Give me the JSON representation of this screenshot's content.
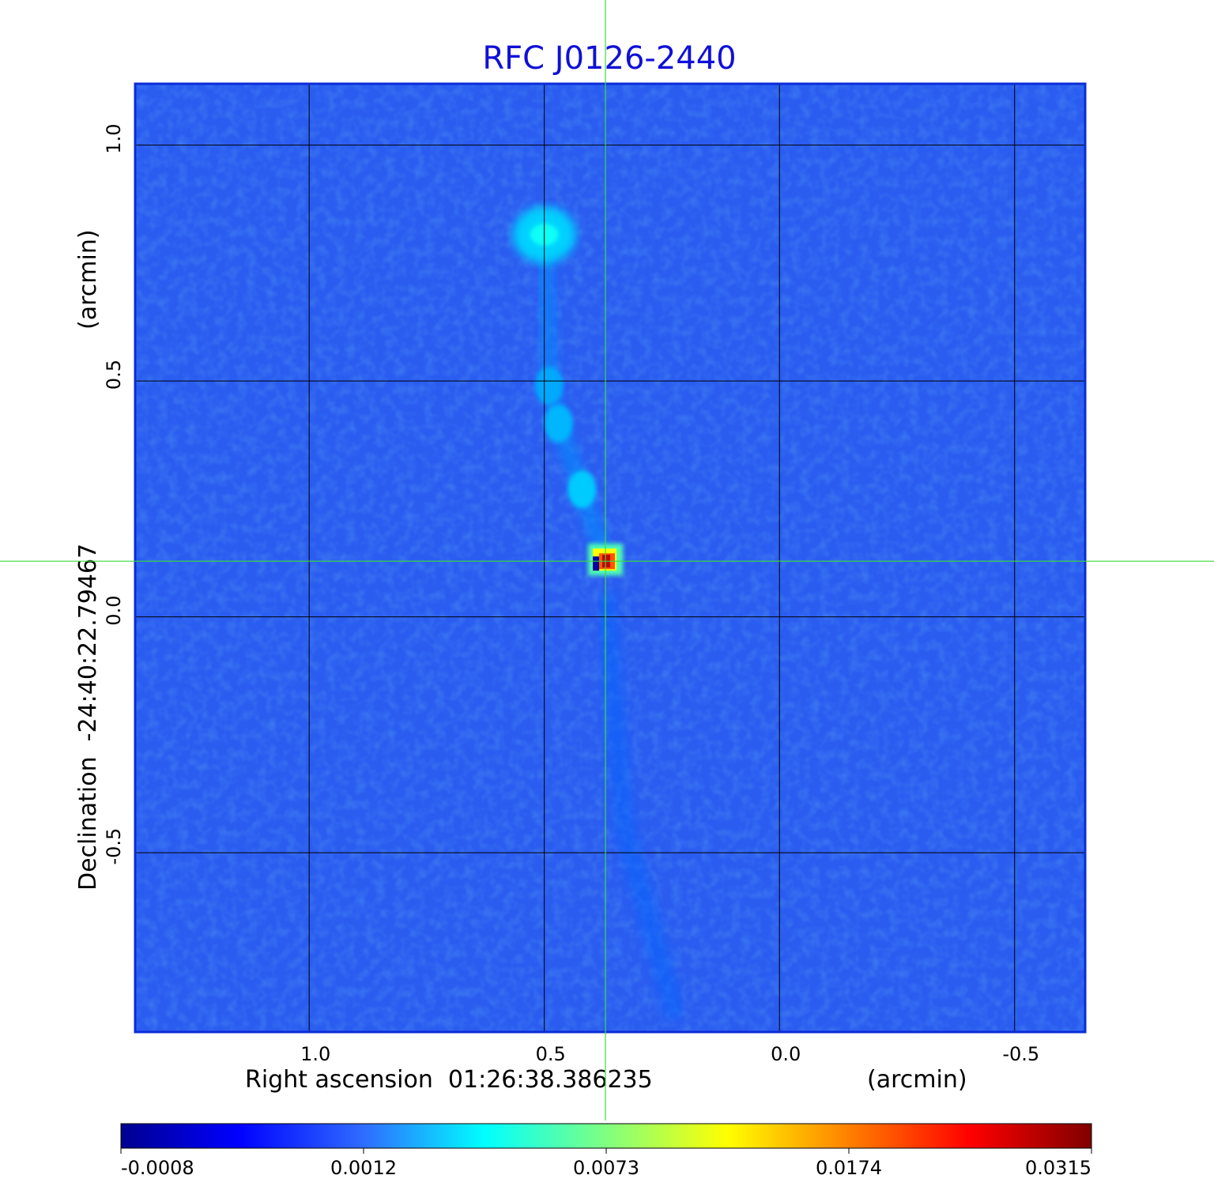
{
  "chart_data": {
    "type": "heatmap",
    "title": "RFC J0126-2440",
    "colormap": "jet",
    "background_color": "#2a5cf0",
    "x_axis": {
      "label_left": "Right ascension  01:26:38.386235",
      "label_right": "(arcmin)",
      "range": [
        1.37,
        -0.65
      ],
      "reversed": true,
      "ticks": [
        1.0,
        0.5,
        0.0,
        -0.5
      ],
      "tick_labels": [
        "1.0",
        "0.5",
        "0.0",
        "-0.5"
      ]
    },
    "y_axis": {
      "label_left": "Declination  -24:40:22.79467",
      "label_right": "(arcmin)",
      "range": [
        -0.88,
        1.13
      ],
      "ticks": [
        1.0,
        0.5,
        0.0,
        -0.5
      ],
      "tick_labels": [
        "1.0",
        "0.5",
        "0.0",
        "-0.5"
      ]
    },
    "grid": true,
    "crosshair": {
      "x": 0.37,
      "y": 0.118,
      "color": "#3ddc3d"
    },
    "colorbar": {
      "orientation": "horizontal",
      "location": "bottom",
      "tick_labels": [
        "-0.0008",
        "0.0012",
        "0.0073",
        "0.0174",
        "0.0315"
      ]
    },
    "features": [
      {
        "name": "core",
        "x": 0.37,
        "y": 0.118,
        "peak": 0.0315
      },
      {
        "name": "jet knot",
        "x": 0.42,
        "y": 0.27,
        "peak": 0.003
      },
      {
        "name": "jet knot",
        "x": 0.47,
        "y": 0.41,
        "peak": 0.0025
      },
      {
        "name": "jet knot",
        "x": 0.49,
        "y": 0.49,
        "peak": 0.0022
      },
      {
        "name": "hotspot",
        "x": 0.5,
        "y": 0.81,
        "peak": 0.0045
      }
    ]
  }
}
